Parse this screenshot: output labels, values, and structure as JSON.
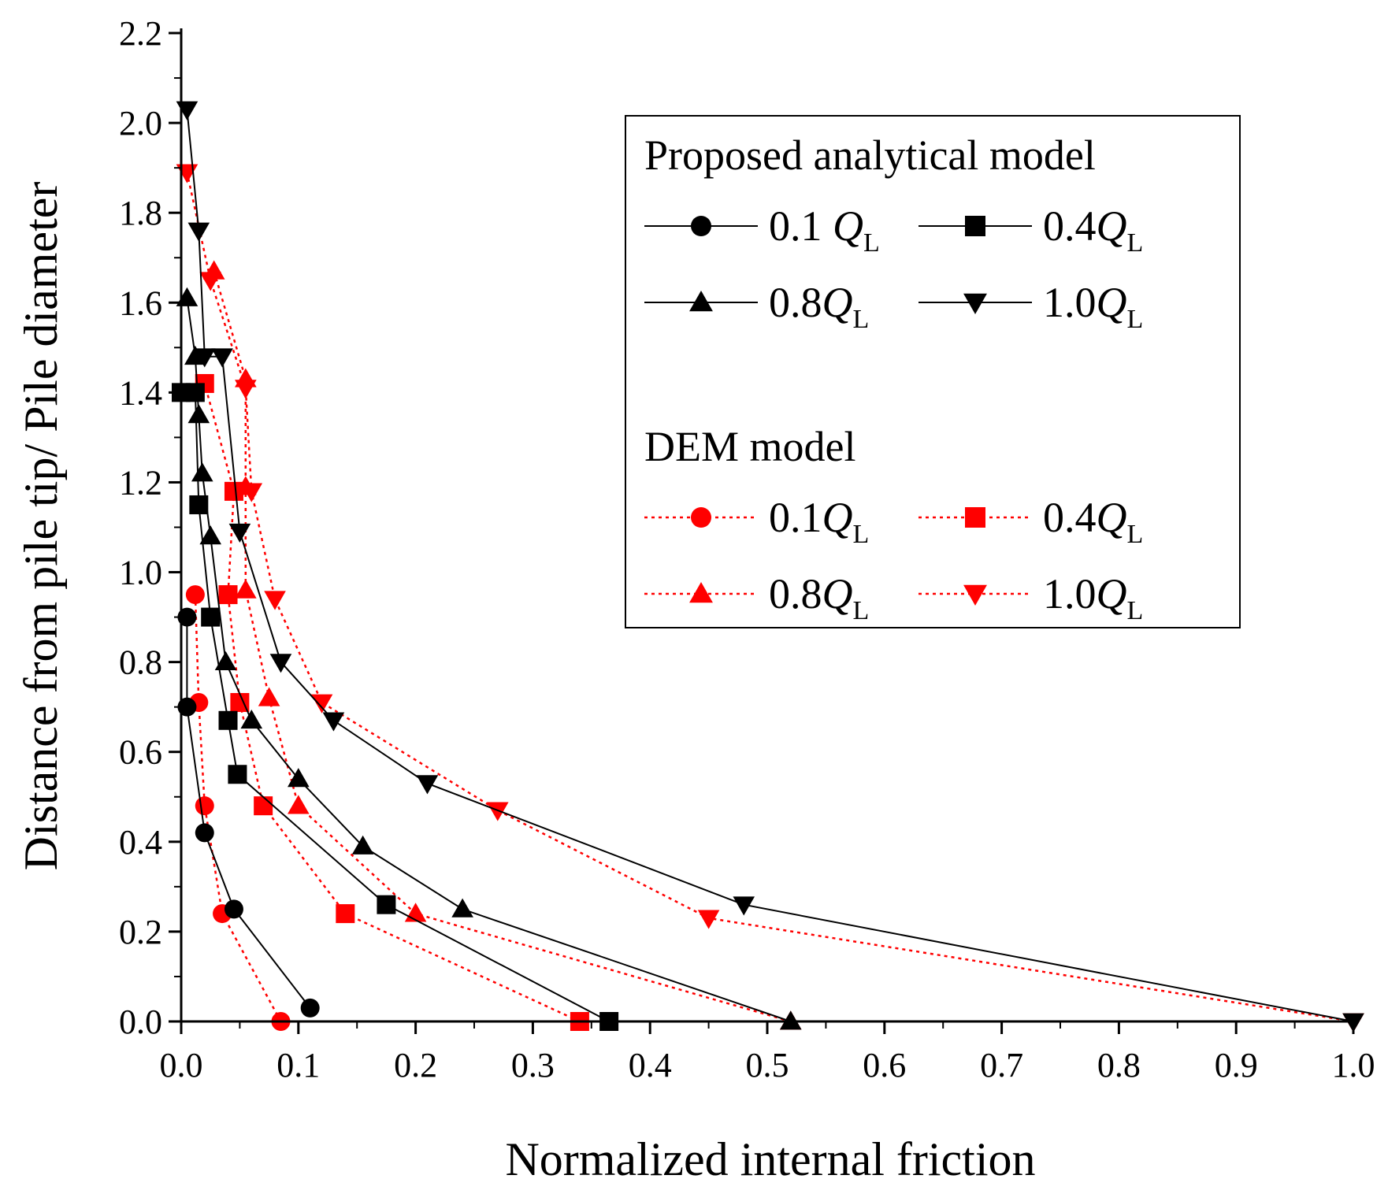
{
  "chart_data": {
    "type": "line",
    "title": "",
    "xlabel": "Normalized internal friction",
    "ylabel": "Distance from pile tip/ Pile diameter",
    "xlim": [
      0.0,
      1.0
    ],
    "ylim": [
      0.0,
      2.2
    ],
    "xticks": [
      "0.0",
      "0.1",
      "0.2",
      "0.3",
      "0.4",
      "0.5",
      "0.6",
      "0.7",
      "0.8",
      "0.9",
      "1.0"
    ],
    "yticks": [
      "0.0",
      "0.2",
      "0.4",
      "0.6",
      "0.8",
      "1.0",
      "1.2",
      "1.4",
      "1.6",
      "1.8",
      "2.0",
      "2.2"
    ],
    "legend_position": "top-right",
    "legend_groups": [
      {
        "heading": "Proposed analytical model",
        "entries": [
          {
            "prefix": "0.1 ",
            "q": "Q",
            "sub": "L"
          },
          {
            "prefix": "0.4",
            "q": "Q",
            "sub": "L"
          },
          {
            "prefix": "0.8",
            "q": "Q",
            "sub": "L"
          },
          {
            "prefix": "1.0",
            "q": "Q",
            "sub": "L"
          }
        ]
      },
      {
        "heading": "DEM model",
        "entries": [
          {
            "prefix": "0.1",
            "q": "Q",
            "sub": "L"
          },
          {
            "prefix": "0.4",
            "q": "Q",
            "sub": "L"
          },
          {
            "prefix": "0.8",
            "q": "Q",
            "sub": "L"
          },
          {
            "prefix": "1.0",
            "q": "Q",
            "sub": "L"
          }
        ]
      }
    ],
    "series": [
      {
        "name": "Analytical 0.1QL",
        "group": "analytical",
        "color": "#000000",
        "marker": "circle",
        "points": [
          [
            0.11,
            0.03
          ],
          [
            0.045,
            0.25
          ],
          [
            0.02,
            0.42
          ],
          [
            0.005,
            0.7
          ],
          [
            0.005,
            0.9
          ]
        ]
      },
      {
        "name": "Analytical 0.4QL",
        "group": "analytical",
        "color": "#000000",
        "marker": "square",
        "points": [
          [
            0.365,
            0.0
          ],
          [
            0.175,
            0.26
          ],
          [
            0.048,
            0.55
          ],
          [
            0.04,
            0.67
          ],
          [
            0.025,
            0.9
          ],
          [
            0.015,
            1.15
          ],
          [
            0.012,
            1.4
          ],
          [
            0.0,
            1.4
          ]
        ]
      },
      {
        "name": "Analytical 0.8QL",
        "group": "analytical",
        "color": "#000000",
        "marker": "triangle-up",
        "points": [
          [
            0.52,
            0.0
          ],
          [
            0.24,
            0.25
          ],
          [
            0.155,
            0.39
          ],
          [
            0.1,
            0.54
          ],
          [
            0.06,
            0.67
          ],
          [
            0.038,
            0.8
          ],
          [
            0.025,
            1.08
          ],
          [
            0.018,
            1.22
          ],
          [
            0.015,
            1.35
          ],
          [
            0.012,
            1.48
          ],
          [
            0.005,
            1.61
          ]
        ]
      },
      {
        "name": "Analytical 1.0QL",
        "group": "analytical",
        "color": "#000000",
        "marker": "triangle-down",
        "points": [
          [
            1.0,
            0.0
          ],
          [
            0.48,
            0.26
          ],
          [
            0.21,
            0.53
          ],
          [
            0.13,
            0.67
          ],
          [
            0.085,
            0.8
          ],
          [
            0.05,
            1.09
          ],
          [
            0.035,
            1.48
          ],
          [
            0.02,
            1.48
          ],
          [
            0.015,
            1.76
          ],
          [
            0.005,
            2.03
          ]
        ]
      },
      {
        "name": "DEM 0.1QL",
        "group": "dem",
        "color": "#ff0000",
        "marker": "circle",
        "points": [
          [
            0.085,
            0.0
          ],
          [
            0.035,
            0.24
          ],
          [
            0.02,
            0.48
          ],
          [
            0.015,
            0.71
          ],
          [
            0.012,
            0.95
          ]
        ]
      },
      {
        "name": "DEM 0.4QL",
        "group": "dem",
        "color": "#ff0000",
        "marker": "square",
        "points": [
          [
            0.34,
            0.0
          ],
          [
            0.14,
            0.24
          ],
          [
            0.07,
            0.48
          ],
          [
            0.05,
            0.71
          ],
          [
            0.04,
            0.95
          ],
          [
            0.045,
            1.18
          ],
          [
            0.02,
            1.42
          ]
        ]
      },
      {
        "name": "DEM 0.8QL",
        "group": "dem",
        "color": "#ff0000",
        "marker": "triangle-up",
        "points": [
          [
            0.52,
            0.0
          ],
          [
            0.2,
            0.24
          ],
          [
            0.1,
            0.48
          ],
          [
            0.075,
            0.72
          ],
          [
            0.055,
            0.96
          ],
          [
            0.055,
            1.19
          ],
          [
            0.055,
            1.43
          ],
          [
            0.028,
            1.67
          ]
        ]
      },
      {
        "name": "DEM 1.0QL",
        "group": "dem",
        "color": "#ff0000",
        "marker": "triangle-down",
        "points": [
          [
            1.0,
            0.0
          ],
          [
            0.45,
            0.23
          ],
          [
            0.27,
            0.47
          ],
          [
            0.12,
            0.71
          ],
          [
            0.08,
            0.94
          ],
          [
            0.06,
            1.18
          ],
          [
            0.055,
            1.41
          ],
          [
            0.025,
            1.65
          ],
          [
            0.005,
            1.89
          ]
        ]
      }
    ]
  }
}
